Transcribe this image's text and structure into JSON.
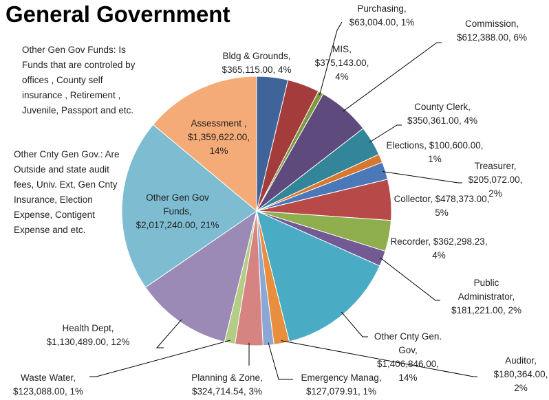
{
  "chart_data": {
    "type": "pie",
    "title": "General Government",
    "categories": [
      "Bldg & Grounds,",
      "MIS,",
      "Purchasing,",
      "Commission,",
      "County Clerk,",
      "Elections,",
      "Treasurer,",
      "Collector,",
      "Recorder,",
      "Public Administrator,",
      "Other Cnty Gen. Gov,",
      "Auditor,",
      "Emergency Manag,",
      "Planning & Zone,",
      "Waste Water,",
      "Health Dept,",
      "Other Gen Gov Funds,",
      "Assessment ,"
    ],
    "values": [
      365115,
      375143,
      63004,
      612388,
      350361,
      100600,
      205072,
      478373,
      362298.23,
      181221,
      1406846,
      180364,
      127079.91,
      324714.54,
      123088,
      1130489,
      2017240,
      1359622
    ],
    "value_labels": [
      "$365,115.00, 4%",
      "$375,143.00, 4%",
      "$63,004.00, 1%",
      "$612,388.00, 6%",
      "$350,361.00, 4%",
      "$100,600.00, 1%",
      "$205,072.00, 2%",
      "$478,373.00, 5%",
      "$362,298.23, 4%",
      "$181,221.00, 2%",
      "$1,406,846.00, 14%",
      "$180,364.00, 2%",
      "$127,079.91, 1%",
      "$324,714.54, 3%",
      "$123,088.00, 1%",
      "$1,130,489.00, 12%",
      "$2,017,240.00, 21%",
      "$1,359,622.00, 14%"
    ],
    "colors": [
      "#3e6499",
      "#a33c3b",
      "#7f9a41",
      "#5f4a7e",
      "#33859a",
      "#d8782f",
      "#4a78b8",
      "#b74a48",
      "#8fae4e",
      "#735a94",
      "#4aabc4",
      "#e88f3f",
      "#8ba7d3",
      "#d68482",
      "#b3cd84",
      "#9b8ab5",
      "#7ebdd1",
      "#f5ab77"
    ],
    "annotations": [
      "Other Gen Gov Funds: Is Funds that are controled by offices , County self insurance , Retirement , Juvenile, Passport and etc.",
      "Other Cnty Gen Gov.: Are Outside and state audit fees, Univ. Ext, Gen Cnty Insurance, Election Expense, Contigent Expense and etc."
    ]
  }
}
